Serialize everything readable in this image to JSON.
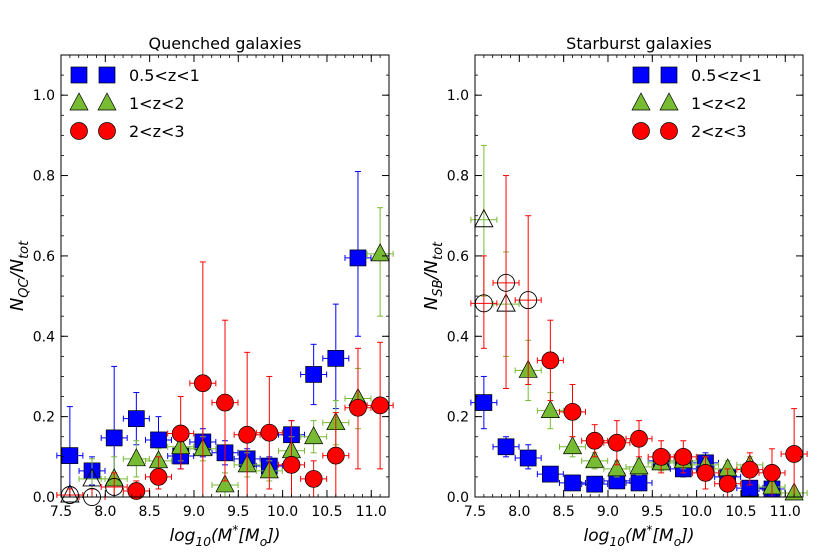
{
  "chart_data": [
    {
      "type": "scatter",
      "title": "Quenched galaxies",
      "ylabel": "N_{QC}/N_{tot}",
      "xlabel": "log_{10}(M^{*}[M_{o}])",
      "xlim": [
        7.5,
        11.2
      ],
      "ylim": [
        0.0,
        1.1
      ],
      "xticks": [
        7.5,
        8.0,
        8.5,
        9.0,
        9.5,
        10.0,
        10.5,
        11.0
      ],
      "yticks": [
        0.0,
        0.2,
        0.4,
        0.6,
        0.8,
        1.0
      ],
      "legend_position": "top-left",
      "series": [
        {
          "name": "0.5<z<1",
          "marker": "square",
          "color": "#0000ff",
          "points": [
            {
              "x": 7.6,
              "y": 0.103,
              "ylo": 0.0,
              "yhi": 0.225,
              "open": false
            },
            {
              "x": 7.85,
              "y": 0.065,
              "ylo": 0.03,
              "yhi": 0.1,
              "open": false
            },
            {
              "x": 8.1,
              "y": 0.147,
              "ylo": 0.04,
              "yhi": 0.325,
              "open": false
            },
            {
              "x": 8.35,
              "y": 0.195,
              "ylo": 0.13,
              "yhi": 0.26,
              "open": false
            },
            {
              "x": 8.6,
              "y": 0.142,
              "ylo": 0.09,
              "yhi": 0.2,
              "open": false
            },
            {
              "x": 8.85,
              "y": 0.102,
              "ylo": 0.07,
              "yhi": 0.14,
              "open": false
            },
            {
              "x": 9.1,
              "y": 0.137,
              "ylo": 0.1,
              "yhi": 0.17,
              "open": false
            },
            {
              "x": 9.35,
              "y": 0.11,
              "ylo": 0.08,
              "yhi": 0.14,
              "open": false
            },
            {
              "x": 9.6,
              "y": 0.095,
              "ylo": 0.07,
              "yhi": 0.12,
              "open": false
            },
            {
              "x": 9.85,
              "y": 0.077,
              "ylo": 0.05,
              "yhi": 0.1,
              "open": false
            },
            {
              "x": 10.1,
              "y": 0.155,
              "ylo": 0.12,
              "yhi": 0.19,
              "open": false
            },
            {
              "x": 10.35,
              "y": 0.305,
              "ylo": 0.23,
              "yhi": 0.38,
              "open": false
            },
            {
              "x": 10.6,
              "y": 0.345,
              "ylo": 0.22,
              "yhi": 0.48,
              "open": false
            },
            {
              "x": 10.85,
              "y": 0.595,
              "ylo": 0.4,
              "yhi": 0.81,
              "open": false
            }
          ]
        },
        {
          "name": "1<z<2",
          "marker": "triangle",
          "color": "#77bb33",
          "points": [
            {
              "x": 7.6,
              "y": 0.005,
              "ylo": 0.0,
              "yhi": 0.02,
              "open": true
            },
            {
              "x": 7.85,
              "y": 0.045,
              "ylo": 0.0,
              "yhi": 0.095,
              "open": true
            },
            {
              "x": 8.1,
              "y": 0.045,
              "ylo": 0.0,
              "yhi": 0.1,
              "open": false
            },
            {
              "x": 8.35,
              "y": 0.095,
              "ylo": 0.05,
              "yhi": 0.14,
              "open": false
            },
            {
              "x": 8.6,
              "y": 0.09,
              "ylo": 0.06,
              "yhi": 0.12,
              "open": false
            },
            {
              "x": 8.85,
              "y": 0.125,
              "ylo": 0.09,
              "yhi": 0.16,
              "open": false
            },
            {
              "x": 9.1,
              "y": 0.12,
              "ylo": 0.09,
              "yhi": 0.15,
              "open": false
            },
            {
              "x": 9.35,
              "y": 0.03,
              "ylo": 0.0,
              "yhi": 0.06,
              "open": false
            },
            {
              "x": 9.6,
              "y": 0.08,
              "ylo": 0.05,
              "yhi": 0.11,
              "open": false
            },
            {
              "x": 9.85,
              "y": 0.065,
              "ylo": 0.04,
              "yhi": 0.09,
              "open": false
            },
            {
              "x": 10.1,
              "y": 0.115,
              "ylo": 0.08,
              "yhi": 0.15,
              "open": false
            },
            {
              "x": 10.35,
              "y": 0.15,
              "ylo": 0.11,
              "yhi": 0.19,
              "open": false
            },
            {
              "x": 10.6,
              "y": 0.185,
              "ylo": 0.13,
              "yhi": 0.24,
              "open": false
            },
            {
              "x": 10.85,
              "y": 0.245,
              "ylo": 0.17,
              "yhi": 0.32,
              "open": false
            },
            {
              "x": 11.1,
              "y": 0.605,
              "ylo": 0.45,
              "yhi": 0.72,
              "open": false
            }
          ]
        },
        {
          "name": "2<z<3",
          "marker": "circle",
          "color": "#ff0000",
          "points": [
            {
              "x": 7.6,
              "y": 0.005,
              "ylo": 0.0,
              "yhi": 0.02,
              "open": true
            },
            {
              "x": 7.85,
              "y": 0.0,
              "ylo": 0.0,
              "yhi": 0.02,
              "open": true
            },
            {
              "x": 8.1,
              "y": 0.025,
              "ylo": 0.0,
              "yhi": 0.06,
              "open": true
            },
            {
              "x": 8.35,
              "y": 0.015,
              "ylo": 0.0,
              "yhi": 0.04,
              "open": false
            },
            {
              "x": 8.6,
              "y": 0.05,
              "ylo": 0.02,
              "yhi": 0.1,
              "open": false
            },
            {
              "x": 8.85,
              "y": 0.158,
              "ylo": 0.07,
              "yhi": 0.25,
              "open": false
            },
            {
              "x": 9.1,
              "y": 0.283,
              "ylo": 0.0,
              "yhi": 0.585,
              "open": false
            },
            {
              "x": 9.35,
              "y": 0.235,
              "ylo": 0.04,
              "yhi": 0.44,
              "open": false
            },
            {
              "x": 9.6,
              "y": 0.155,
              "ylo": 0.0,
              "yhi": 0.36,
              "open": false
            },
            {
              "x": 9.85,
              "y": 0.16,
              "ylo": 0.02,
              "yhi": 0.3,
              "open": false
            },
            {
              "x": 10.1,
              "y": 0.08,
              "ylo": 0.0,
              "yhi": 0.19,
              "open": false
            },
            {
              "x": 10.35,
              "y": 0.045,
              "ylo": 0.0,
              "yhi": 0.09,
              "open": false
            },
            {
              "x": 10.6,
              "y": 0.103,
              "ylo": 0.0,
              "yhi": 0.21,
              "open": false
            },
            {
              "x": 10.85,
              "y": 0.222,
              "ylo": 0.07,
              "yhi": 0.37,
              "open": false
            },
            {
              "x": 11.1,
              "y": 0.228,
              "ylo": 0.07,
              "yhi": 0.385,
              "open": false
            }
          ]
        }
      ]
    },
    {
      "type": "scatter",
      "title": "Starburst galaxies",
      "ylabel": "N_{SB}/N_{tot}",
      "xlabel": "log_{10}(M^{*}[M_{o}])",
      "xlim": [
        7.5,
        11.2
      ],
      "ylim": [
        0.0,
        1.1
      ],
      "xticks": [
        7.5,
        8.0,
        8.5,
        9.0,
        9.5,
        10.0,
        10.5,
        11.0
      ],
      "yticks": [
        0.0,
        0.2,
        0.4,
        0.6,
        0.8,
        1.0
      ],
      "legend_position": "top-right",
      "series": [
        {
          "name": "0.5<z<1",
          "marker": "square",
          "color": "#0000ff",
          "points": [
            {
              "x": 7.6,
              "y": 0.235,
              "ylo": 0.17,
              "yhi": 0.3,
              "open": false
            },
            {
              "x": 7.85,
              "y": 0.125,
              "ylo": 0.1,
              "yhi": 0.15,
              "open": false
            },
            {
              "x": 8.1,
              "y": 0.097,
              "ylo": 0.07,
              "yhi": 0.13,
              "open": false
            },
            {
              "x": 8.35,
              "y": 0.057,
              "ylo": 0.04,
              "yhi": 0.075,
              "open": false
            },
            {
              "x": 8.6,
              "y": 0.035,
              "ylo": 0.02,
              "yhi": 0.05,
              "open": false
            },
            {
              "x": 8.85,
              "y": 0.032,
              "ylo": 0.02,
              "yhi": 0.045,
              "open": false
            },
            {
              "x": 9.1,
              "y": 0.04,
              "ylo": 0.025,
              "yhi": 0.055,
              "open": false
            },
            {
              "x": 9.35,
              "y": 0.035,
              "ylo": 0.02,
              "yhi": 0.05,
              "open": false
            },
            {
              "x": 9.6,
              "y": 0.09,
              "ylo": 0.07,
              "yhi": 0.11,
              "open": false
            },
            {
              "x": 9.85,
              "y": 0.07,
              "ylo": 0.05,
              "yhi": 0.09,
              "open": false
            },
            {
              "x": 10.1,
              "y": 0.085,
              "ylo": 0.06,
              "yhi": 0.11,
              "open": false
            },
            {
              "x": 10.35,
              "y": 0.05,
              "ylo": 0.03,
              "yhi": 0.07,
              "open": false
            },
            {
              "x": 10.6,
              "y": 0.022,
              "ylo": 0.005,
              "yhi": 0.04,
              "open": false
            },
            {
              "x": 10.85,
              "y": 0.02,
              "ylo": 0.005,
              "yhi": 0.035,
              "open": false
            }
          ]
        },
        {
          "name": "1<z<2",
          "marker": "triangle",
          "color": "#77bb33",
          "points": [
            {
              "x": 7.6,
              "y": 0.69,
              "ylo": 0.5,
              "yhi": 0.875,
              "open": true
            },
            {
              "x": 7.85,
              "y": 0.48,
              "ylo": 0.35,
              "yhi": 0.61,
              "open": true
            },
            {
              "x": 8.1,
              "y": 0.315,
              "ylo": 0.24,
              "yhi": 0.39,
              "open": false
            },
            {
              "x": 8.35,
              "y": 0.215,
              "ylo": 0.17,
              "yhi": 0.26,
              "open": false
            },
            {
              "x": 8.6,
              "y": 0.125,
              "ylo": 0.1,
              "yhi": 0.15,
              "open": false
            },
            {
              "x": 8.85,
              "y": 0.09,
              "ylo": 0.07,
              "yhi": 0.11,
              "open": false
            },
            {
              "x": 9.1,
              "y": 0.07,
              "ylo": 0.05,
              "yhi": 0.09,
              "open": false
            },
            {
              "x": 9.35,
              "y": 0.075,
              "ylo": 0.055,
              "yhi": 0.095,
              "open": false
            },
            {
              "x": 9.6,
              "y": 0.085,
              "ylo": 0.065,
              "yhi": 0.105,
              "open": false
            },
            {
              "x": 9.85,
              "y": 0.09,
              "ylo": 0.07,
              "yhi": 0.11,
              "open": false
            },
            {
              "x": 10.1,
              "y": 0.08,
              "ylo": 0.06,
              "yhi": 0.1,
              "open": false
            },
            {
              "x": 10.35,
              "y": 0.07,
              "ylo": 0.05,
              "yhi": 0.09,
              "open": false
            },
            {
              "x": 10.6,
              "y": 0.08,
              "ylo": 0.06,
              "yhi": 0.1,
              "open": false
            },
            {
              "x": 10.85,
              "y": 0.025,
              "ylo": 0.01,
              "yhi": 0.04,
              "open": false
            },
            {
              "x": 11.1,
              "y": 0.01,
              "ylo": 0.0,
              "yhi": 0.02,
              "open": false
            }
          ]
        },
        {
          "name": "2<z<3",
          "marker": "circle",
          "color": "#ff0000",
          "points": [
            {
              "x": 7.6,
              "y": 0.482,
              "ylo": 0.37,
              "yhi": 0.6,
              "open": true
            },
            {
              "x": 7.85,
              "y": 0.533,
              "ylo": 0.27,
              "yhi": 0.8,
              "open": true
            },
            {
              "x": 8.1,
              "y": 0.49,
              "ylo": 0.28,
              "yhi": 0.7,
              "open": true
            },
            {
              "x": 8.35,
              "y": 0.34,
              "ylo": 0.24,
              "yhi": 0.44,
              "open": false
            },
            {
              "x": 8.6,
              "y": 0.212,
              "ylo": 0.15,
              "yhi": 0.28,
              "open": false
            },
            {
              "x": 8.85,
              "y": 0.14,
              "ylo": 0.1,
              "yhi": 0.18,
              "open": false
            },
            {
              "x": 9.1,
              "y": 0.135,
              "ylo": 0.08,
              "yhi": 0.19,
              "open": false
            },
            {
              "x": 9.35,
              "y": 0.145,
              "ylo": 0.1,
              "yhi": 0.19,
              "open": false
            },
            {
              "x": 9.6,
              "y": 0.1,
              "ylo": 0.06,
              "yhi": 0.14,
              "open": false
            },
            {
              "x": 9.85,
              "y": 0.1,
              "ylo": 0.06,
              "yhi": 0.14,
              "open": false
            },
            {
              "x": 10.1,
              "y": 0.06,
              "ylo": 0.02,
              "yhi": 0.1,
              "open": false
            },
            {
              "x": 10.35,
              "y": 0.033,
              "ylo": 0.0,
              "yhi": 0.07,
              "open": false
            },
            {
              "x": 10.6,
              "y": 0.068,
              "ylo": 0.03,
              "yhi": 0.11,
              "open": false
            },
            {
              "x": 10.85,
              "y": 0.06,
              "ylo": 0.0,
              "yhi": 0.12,
              "open": false
            },
            {
              "x": 11.1,
              "y": 0.107,
              "ylo": 0.0,
              "yhi": 0.22,
              "open": false
            }
          ]
        }
      ]
    }
  ]
}
